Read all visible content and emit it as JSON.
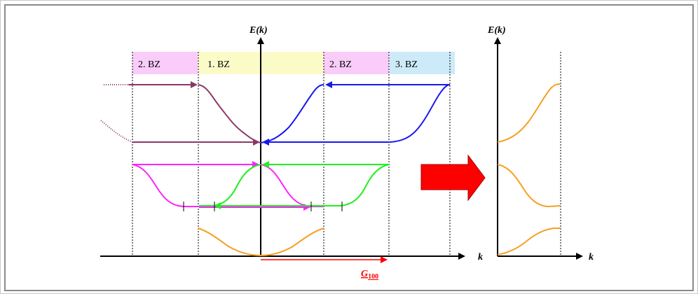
{
  "left_plot": {
    "y_axis_label": "E(k)",
    "x_axis_label": "k",
    "zones": [
      {
        "label": "2. BZ",
        "color": "#f9ccf9"
      },
      {
        "label": "1. BZ",
        "color": "#fbfbc8"
      },
      {
        "label": "2. BZ",
        "color": "#f9ccf9"
      },
      {
        "label": "3. BZ",
        "color": "#cdeaf8"
      }
    ],
    "reciprocal_vector": {
      "symbol": "G",
      "subscript": "100",
      "color": "#ff0000"
    }
  },
  "right_plot": {
    "y_axis_label": "E(k)",
    "x_axis_label": "k"
  },
  "colors": {
    "band1": "#f5a020",
    "band2_magenta": "#ff22ff",
    "band2_green": "#22ee22",
    "band3_maroon": "#8a3868",
    "band3_blue": "#1818ee",
    "arrow_fill": "#ff0000"
  }
}
